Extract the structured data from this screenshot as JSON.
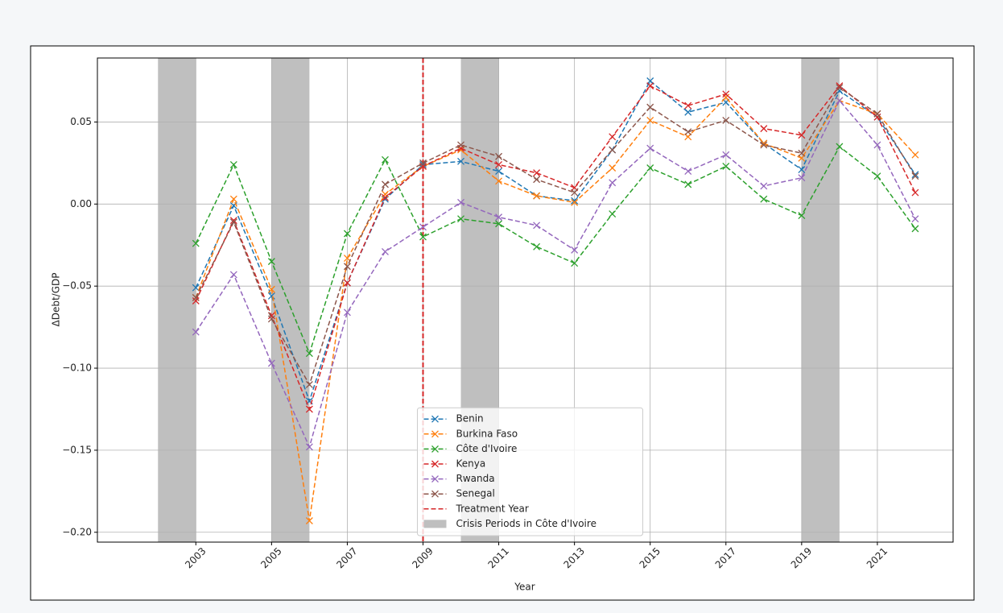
{
  "chart_data": {
    "type": "line",
    "xlabel": "Year",
    "ylabel": "ΔDebt/GDP",
    "x": [
      2003,
      2004,
      2005,
      2006,
      2007,
      2008,
      2009,
      2010,
      2011,
      2012,
      2013,
      2014,
      2015,
      2016,
      2017,
      2018,
      2019,
      2020,
      2021,
      2022
    ],
    "series": [
      {
        "name": "Benin",
        "color": "#1f77b4",
        "values": [
          -0.051,
          -0.001,
          -0.056,
          -0.12,
          -0.048,
          0.003,
          0.024,
          0.026,
          0.02,
          0.005,
          0.002,
          0.033,
          0.075,
          0.056,
          0.062,
          0.037,
          0.021,
          0.069,
          0.053,
          0.018
        ]
      },
      {
        "name": "Burkina Faso",
        "color": "#ff7f0e",
        "values": [
          -0.057,
          0.003,
          -0.052,
          -0.193,
          -0.033,
          0.006,
          0.023,
          0.033,
          0.014,
          0.005,
          0.001,
          0.022,
          0.051,
          0.041,
          0.065,
          0.037,
          0.028,
          0.063,
          0.055,
          0.03
        ]
      },
      {
        "name": "Côte d'Ivoire",
        "color": "#2ca02c",
        "values": [
          -0.024,
          0.024,
          -0.035,
          -0.091,
          -0.018,
          0.027,
          -0.02,
          -0.009,
          -0.012,
          -0.026,
          -0.036,
          -0.006,
          0.022,
          0.012,
          0.023,
          0.003,
          -0.007,
          0.035,
          0.017,
          -0.015
        ]
      },
      {
        "name": "Kenya",
        "color": "#d62728",
        "values": [
          -0.059,
          -0.01,
          -0.068,
          -0.125,
          -0.048,
          0.004,
          0.023,
          0.034,
          0.024,
          0.019,
          0.01,
          0.041,
          0.072,
          0.06,
          0.067,
          0.046,
          0.042,
          0.072,
          0.053,
          0.007
        ]
      },
      {
        "name": "Rwanda",
        "color": "#9467bd",
        "values": [
          -0.078,
          -0.043,
          -0.097,
          -0.148,
          -0.066,
          -0.029,
          -0.014,
          0.001,
          -0.008,
          -0.013,
          -0.028,
          0.013,
          0.034,
          0.02,
          0.03,
          0.011,
          0.016,
          0.063,
          0.036,
          -0.009
        ]
      },
      {
        "name": "Senegal",
        "color": "#8c564b",
        "values": [
          -0.057,
          -0.011,
          -0.07,
          -0.11,
          -0.038,
          0.012,
          0.025,
          0.036,
          0.029,
          0.015,
          0.007,
          0.033,
          0.059,
          0.044,
          0.051,
          0.036,
          0.031,
          0.071,
          0.055,
          0.017
        ]
      }
    ],
    "vline": {
      "x": 2009,
      "label": "Treatment Year",
      "color": "#d62728"
    },
    "spans": [
      [
        2002,
        2003
      ],
      [
        2005,
        2006
      ],
      [
        2010,
        2011
      ],
      [
        2019,
        2020
      ]
    ],
    "span_label": "Crisis Periods in Côte d'Ivoire",
    "span_color": "#bfbfbf",
    "xlim": [
      2000.4,
      2023
    ],
    "xticks": [
      2003,
      2005,
      2007,
      2009,
      2011,
      2013,
      2015,
      2017,
      2019,
      2021
    ],
    "ylim": [
      -0.206,
      0.089
    ],
    "yticks": [
      {
        "value": -0.2,
        "label": "−0.20"
      },
      {
        "value": -0.15,
        "label": "−0.15"
      },
      {
        "value": -0.1,
        "label": "−0.10"
      },
      {
        "value": -0.05,
        "label": "−0.05"
      },
      {
        "value": 0,
        "label": "0.00"
      },
      0.05
    ],
    "grid": true,
    "legend": "lower center"
  }
}
